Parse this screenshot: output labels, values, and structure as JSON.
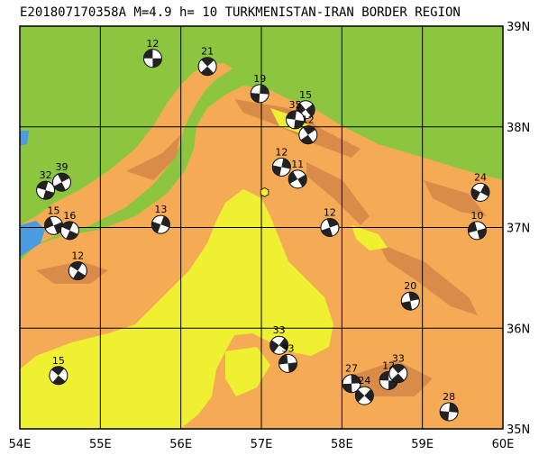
{
  "title": "E201807170358A M=4.9 h= 10 TURKMENISTAN-IRAN BORDER REGION",
  "colors": {
    "green": "#8cc63f",
    "orange": "#f5aa55",
    "darkorange": "#d98c4a",
    "yellow": "#f0f032",
    "water": "#4a9be0",
    "epicenter": "#f0f032"
  },
  "x_ticks": [
    "54E",
    "55E",
    "56E",
    "57E",
    "58E",
    "59E",
    "60E"
  ],
  "y_ticks": [
    "39N",
    "38N",
    "37N",
    "36N",
    "35N"
  ],
  "extent": {
    "lon": [
      54,
      60
    ],
    "lat": [
      35,
      39
    ]
  },
  "epicenter": {
    "lon": 57.04,
    "lat": 37.35
  },
  "events": [
    {
      "label": "12",
      "lon": 55.65,
      "lat": 38.68
    },
    {
      "label": "21",
      "lon": 56.33,
      "lat": 38.6
    },
    {
      "label": "19",
      "lon": 56.98,
      "lat": 38.33
    },
    {
      "label": "15",
      "lon": 57.55,
      "lat": 38.17
    },
    {
      "label": "35",
      "lon": 57.42,
      "lat": 38.07
    },
    {
      "label": "12",
      "lon": 57.58,
      "lat": 37.92
    },
    {
      "label": "12",
      "lon": 57.25,
      "lat": 37.6
    },
    {
      "label": "11",
      "lon": 57.45,
      "lat": 37.48
    },
    {
      "label": "32",
      "lon": 54.32,
      "lat": 37.37
    },
    {
      "label": "39",
      "lon": 54.52,
      "lat": 37.45
    },
    {
      "label": "13",
      "lon": 55.75,
      "lat": 37.03
    },
    {
      "label": "15",
      "lon": 54.42,
      "lat": 37.02
    },
    {
      "label": "16",
      "lon": 54.62,
      "lat": 36.97
    },
    {
      "label": "12",
      "lon": 57.85,
      "lat": 37.0
    },
    {
      "label": "24",
      "lon": 59.72,
      "lat": 37.35
    },
    {
      "label": "10",
      "lon": 59.68,
      "lat": 36.97
    },
    {
      "label": "12",
      "lon": 54.72,
      "lat": 36.57
    },
    {
      "label": "20",
      "lon": 58.85,
      "lat": 36.27
    },
    {
      "label": "33",
      "lon": 57.22,
      "lat": 35.83
    },
    {
      "label": "33",
      "lon": 57.33,
      "lat": 35.65
    },
    {
      "label": "15",
      "lon": 54.48,
      "lat": 35.53
    },
    {
      "label": "27",
      "lon": 58.12,
      "lat": 35.45
    },
    {
      "label": "24",
      "lon": 58.28,
      "lat": 35.33
    },
    {
      "label": "12",
      "lon": 58.58,
      "lat": 35.48
    },
    {
      "label": "33",
      "lon": 58.7,
      "lat": 35.55
    },
    {
      "label": "28",
      "lon": 59.33,
      "lat": 35.17
    }
  ]
}
